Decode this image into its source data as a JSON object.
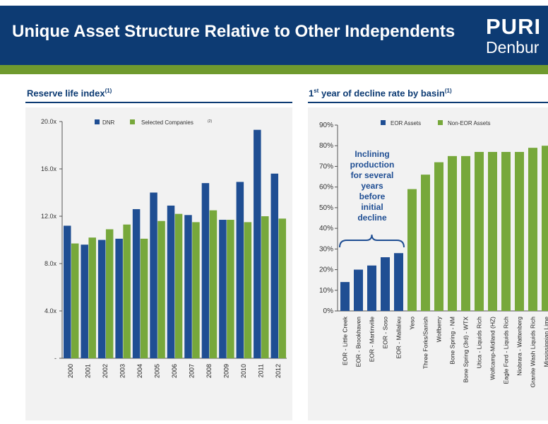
{
  "header": {
    "title": "Unique Asset Structure Relative to Other Independents",
    "logo_line1": "PURI",
    "logo_line2": "Denbur"
  },
  "colors": {
    "header_bg": "#0d3b73",
    "accent_bar": "#6f9a2e",
    "dnr_blue": "#1f4e93",
    "peer_green": "#77a83b",
    "panel_bg": "#f2f2f2"
  },
  "left_section": {
    "title": "Reserve life index",
    "superscript": "(1)"
  },
  "right_section": {
    "title_prefix": "1",
    "title_ordinal": "st",
    "title_rest": " year of decline rate by basin",
    "superscript": "(1)"
  },
  "chart_data": [
    {
      "type": "bar",
      "title": "Reserve life index",
      "categories": [
        "2000",
        "2001",
        "2002",
        "2003",
        "2004",
        "2005",
        "2006",
        "2007",
        "2008",
        "2009",
        "2010",
        "2011",
        "2012"
      ],
      "series": [
        {
          "name": "DNR",
          "color": "#1f4e93",
          "values": [
            11.2,
            9.6,
            10.0,
            10.1,
            12.6,
            14.0,
            12.9,
            12.1,
            14.8,
            11.7,
            14.9,
            19.3,
            15.6
          ]
        },
        {
          "name": "Selected Companies",
          "name_superscript": "(2)",
          "color": "#77a83b",
          "values": [
            9.7,
            10.2,
            10.9,
            11.3,
            10.1,
            11.6,
            12.2,
            11.5,
            12.5,
            11.7,
            11.5,
            12.0,
            11.8
          ]
        }
      ],
      "ylim": [
        0,
        20
      ],
      "yticks": [
        {
          "value": 0,
          "label": "-"
        },
        {
          "value": 4,
          "label": "4.0x"
        },
        {
          "value": 8,
          "label": "8.0x"
        },
        {
          "value": 12,
          "label": "12.0x"
        },
        {
          "value": 16,
          "label": "16.0x"
        },
        {
          "value": 20,
          "label": "20.0x"
        }
      ],
      "legend": "top",
      "grid": false
    },
    {
      "type": "bar",
      "title": "1st year of decline rate by basin",
      "categories": [
        "EOR - Little Creek",
        "EOR - Brookhaven",
        "EOR - Martinville",
        "EOR - Soso",
        "EOR - Mallalieu",
        "Yeso",
        "Three Forks/Sanish",
        "Wolfberry",
        "Bone Spring - NM",
        "Bone Spring (3rd) - WTX",
        "Utica - Liquids Rich",
        "Wolfcamp-Midland (HZ)",
        "Eagle Ford - Liquids Rich",
        "Niobrara - Wattenberg",
        "Granite Wash Liquids Rich",
        "Mississippian Lime"
      ],
      "groups": [
        "EOR Assets",
        "EOR Assets",
        "EOR Assets",
        "EOR Assets",
        "EOR Assets",
        "Non-EOR Assets",
        "Non-EOR Assets",
        "Non-EOR Assets",
        "Non-EOR Assets",
        "Non-EOR Assets",
        "Non-EOR Assets",
        "Non-EOR Assets",
        "Non-EOR Assets",
        "Non-EOR Assets",
        "Non-EOR Assets",
        "Non-EOR Assets"
      ],
      "series": [
        {
          "name": "EOR Assets",
          "color": "#1f4e93"
        },
        {
          "name": "Non-EOR Assets",
          "color": "#77a83b"
        }
      ],
      "values": [
        14,
        20,
        22,
        26,
        28,
        59,
        66,
        72,
        75,
        75,
        77,
        77,
        77,
        77,
        79,
        80
      ],
      "ylim": [
        0,
        90
      ],
      "yticks": [
        "0%",
        "10%",
        "20%",
        "30%",
        "40%",
        "50%",
        "60%",
        "70%",
        "80%",
        "90%"
      ],
      "annotation_lines": [
        "Inclining",
        "production",
        "for several",
        "years",
        "before",
        "initial",
        "decline"
      ],
      "legend": "top",
      "grid": false
    }
  ]
}
